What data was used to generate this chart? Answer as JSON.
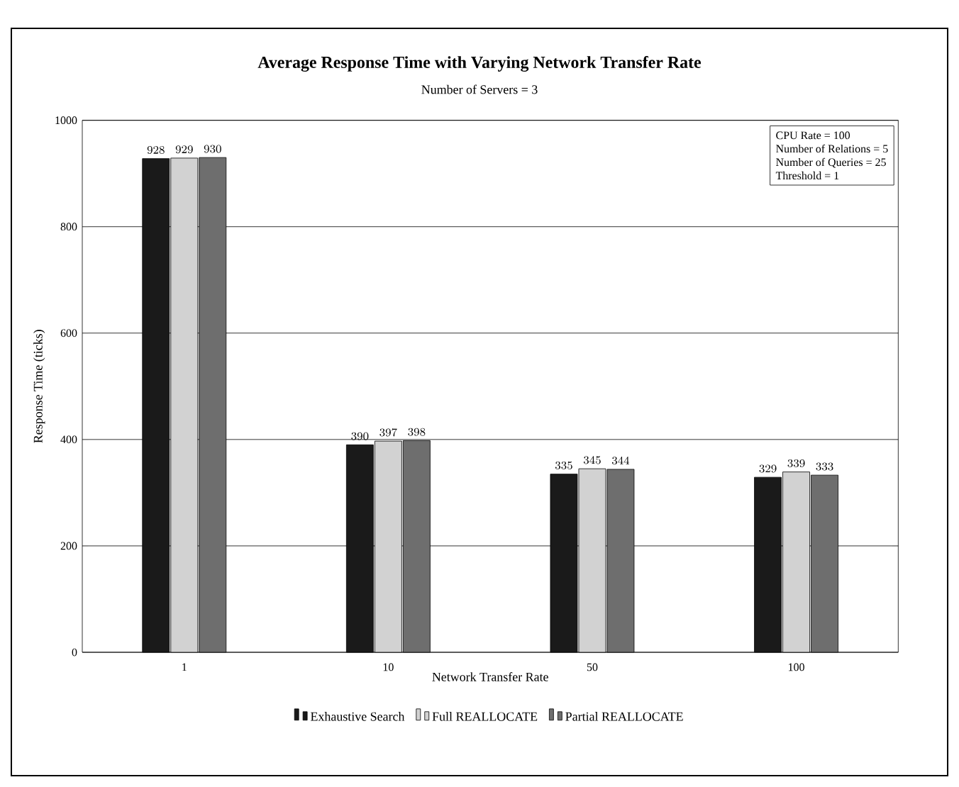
{
  "chart_data": {
    "type": "bar",
    "title": "Average Response Time with Varying Network Transfer Rate",
    "subtitle": "Number of Servers = 3",
    "xlabel": "Network Transfer Rate",
    "ylabel": "Response Time (ticks)",
    "categories": [
      "1",
      "10",
      "50",
      "100"
    ],
    "series": [
      {
        "name": "Exhaustive Search",
        "color": "#1a1a1a",
        "values": [
          928,
          390,
          335,
          329
        ]
      },
      {
        "name": "Full REALLOCATE",
        "color": "#d2d2d2",
        "values": [
          929,
          397,
          345,
          339
        ]
      },
      {
        "name": "Partial REALLOCATE",
        "color": "#6e6e6e",
        "values": [
          930,
          398,
          344,
          333
        ]
      }
    ],
    "ylim": [
      0,
      1000
    ],
    "yticks": [
      0,
      200,
      400,
      600,
      800,
      1000
    ],
    "grid": "y",
    "legend": "bottom",
    "data_labels": true,
    "annotations": [
      "CPU Rate = 100",
      "Number of Relations = 5",
      "Number of Queries = 25",
      "Threshold = 1"
    ]
  }
}
